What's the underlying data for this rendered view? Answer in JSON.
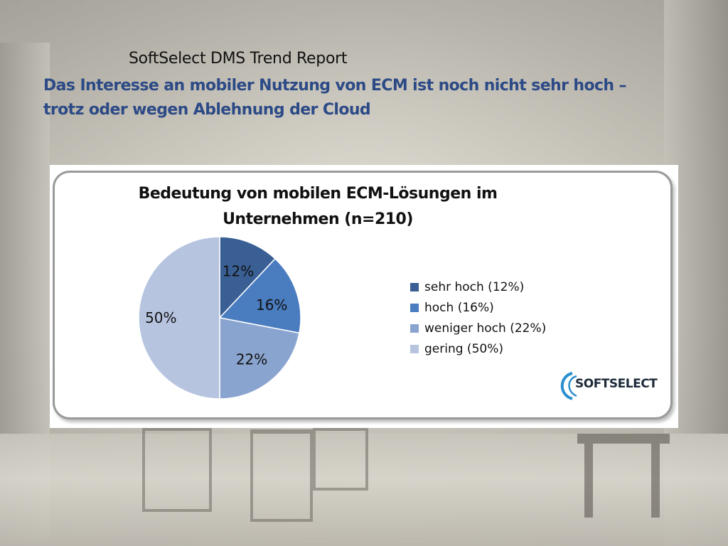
{
  "slide": {
    "report_title": "SoftSelect DMS Trend Report",
    "headline_line1": "Das Interesse an mobiler Nutzung von ECM ist noch nicht sehr hoch –",
    "headline_line2": "trotz oder wegen Ablehnung der Cloud",
    "headline_color": "#2c4a86",
    "logo_text": "SOFTSELECT"
  },
  "chart_data": {
    "type": "pie",
    "title_line1": "Bedeutung von mobilen ECM-Lösungen im",
    "title_line2": "Unternehmen (n=210)",
    "legend_position": "right",
    "slices": [
      {
        "name": "sehr hoch (12%)",
        "value": 12,
        "label": "12%",
        "color": "#3a5f94"
      },
      {
        "name": "hoch (16%)",
        "value": 16,
        "label": "16%",
        "color": "#4a7cc0"
      },
      {
        "name": "weniger hoch (22%)",
        "value": 22,
        "label": "22%",
        "color": "#8aa4d0"
      },
      {
        "name": "gering (50%)",
        "value": 50,
        "label": "50%",
        "color": "#b6c4e0"
      }
    ]
  }
}
